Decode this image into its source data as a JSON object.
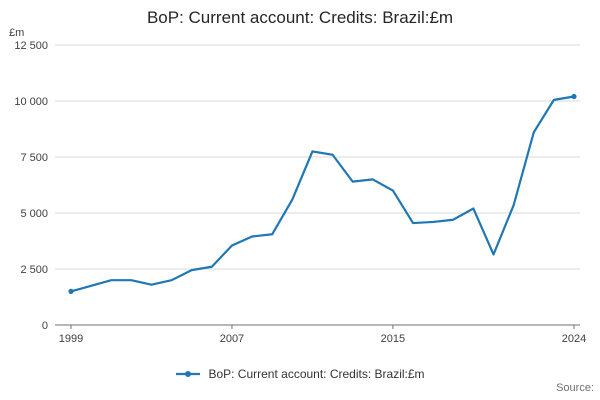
{
  "header": {
    "title": "BoP: Current account: Credits: Brazil:£m"
  },
  "axis": {
    "unit": "£m"
  },
  "legend": {
    "label": "BoP: Current account: Credits: Brazil:£m"
  },
  "footer": {
    "source": "Source:"
  },
  "colors": {
    "accent": "#1f77b4",
    "gridline": "#d9d9d9",
    "axis_line": "#707070",
    "tick_text": "#404040"
  },
  "chart_data": {
    "type": "line",
    "title": "BoP: Current account: Credits: Brazil:£m",
    "ylabel": "£m",
    "xlabel": "",
    "x": [
      1999,
      2000,
      2001,
      2002,
      2003,
      2004,
      2005,
      2006,
      2007,
      2008,
      2009,
      2010,
      2011,
      2012,
      2013,
      2014,
      2015,
      2016,
      2017,
      2018,
      2019,
      2020,
      2021,
      2022,
      2023,
      2024
    ],
    "series": [
      {
        "name": "BoP: Current account: Credits: Brazil:£m",
        "values": [
          1500,
          1750,
          2000,
          2000,
          1800,
          2000,
          2450,
          2600,
          3550,
          3950,
          4050,
          5600,
          7750,
          7600,
          6400,
          6500,
          6000,
          4550,
          4600,
          4700,
          5200,
          3150,
          5350,
          8600,
          10050,
          10200
        ]
      }
    ],
    "ylim": [
      0,
      12500
    ],
    "yticks": [
      0,
      2500,
      5000,
      7500,
      10000,
      12500
    ],
    "ytick_labels": [
      "0",
      "2 500",
      "5 000",
      "7 500",
      "10 000",
      "12 500"
    ],
    "xticks": [
      1999,
      2007,
      2015,
      2024
    ],
    "grid": "horizontal",
    "legend_position": "bottom",
    "line_color": "#1f77b4"
  }
}
